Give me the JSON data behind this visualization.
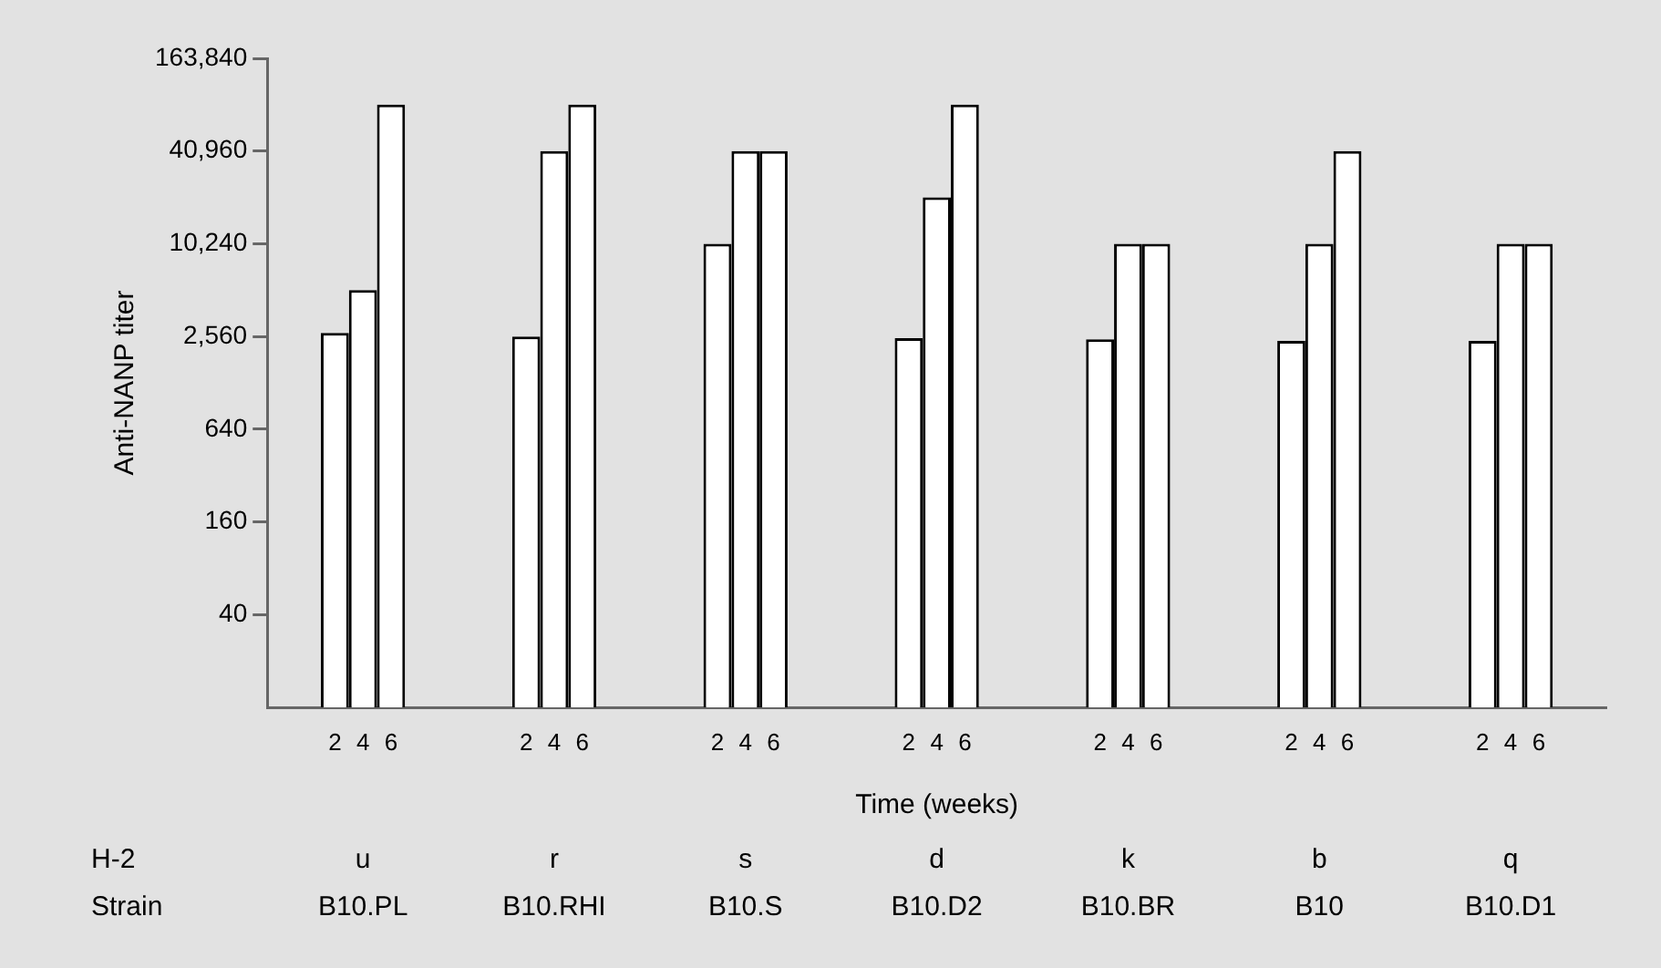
{
  "chart_data": {
    "type": "bar",
    "ylabel": "Anti-NANP titer",
    "xlabel": "Time (weeks)",
    "categories": [
      "B10.PL",
      "B10.RHI",
      "B10.S",
      "B10.D2",
      "B10.BR",
      "B10",
      "B10.D1"
    ],
    "series": [
      {
        "name": "2",
        "color": "#ffffff",
        "values": [
          2700,
          2560,
          10240,
          2500,
          2450,
          2400,
          2400
        ]
      },
      {
        "name": "4",
        "color": "#ffffff",
        "values": [
          5120,
          40960,
          40960,
          20480,
          10240,
          10240,
          10240
        ]
      },
      {
        "name": "6",
        "color": "#ffffff",
        "values": [
          81920,
          81920,
          40960,
          81920,
          10240,
          40960,
          10240
        ]
      }
    ],
    "log": "y",
    "ylim": [
      10,
      163840
    ],
    "yticks": [
      {
        "value": 40,
        "label": "40"
      },
      {
        "value": 160,
        "label": "160"
      },
      {
        "value": 640,
        "label": "640"
      },
      {
        "value": 2560,
        "label": "2,560"
      },
      {
        "value": 10240,
        "label": "10,240"
      },
      {
        "value": 40960,
        "label": "40,960"
      },
      {
        "value": 163840,
        "label": "163,840"
      }
    ],
    "grid": false,
    "legend": false,
    "annotations": [
      "H-2",
      "Strain",
      "u",
      "r",
      "s",
      "d",
      "k",
      "b",
      "q"
    ]
  }
}
